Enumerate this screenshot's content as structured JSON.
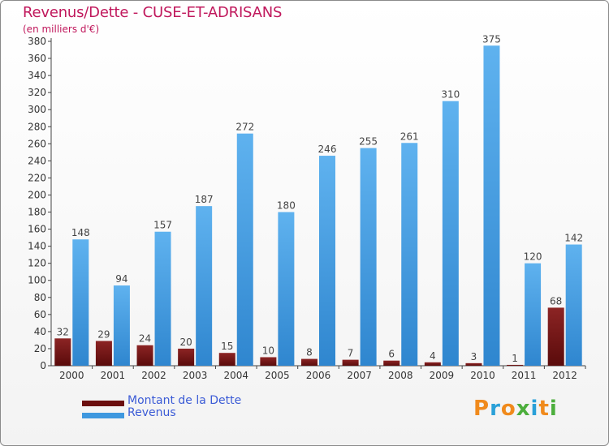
{
  "title": "Revenus/Dette - CUSE-ET-ADRISANS",
  "subtitle": "(en milliers d'€)",
  "logo": {
    "text": "Proxiti",
    "colors": [
      "#f08a1c",
      "#2aa0d8",
      "#f08a1c",
      "#4cae3c",
      "#2aa0d8",
      "#f08a1c",
      "#4cae3c"
    ]
  },
  "colors": {
    "dette": "#7a1a1a",
    "revenus": "#4aa3e6"
  },
  "legend": [
    {
      "label": "Montant de la Dette",
      "color": "#6b0e0e"
    },
    {
      "label": "Revenus",
      "color": "#3e98df"
    }
  ],
  "chart_data": {
    "type": "bar",
    "title": "Revenus/Dette - CUSE-ET-ADRISANS",
    "subtitle": "(en milliers d'€)",
    "categories": [
      "2000",
      "2001",
      "2002",
      "2003",
      "2004",
      "2005",
      "2006",
      "2007",
      "2008",
      "2009",
      "2010",
      "2011",
      "2012"
    ],
    "series": [
      {
        "name": "Montant de la Dette",
        "values": [
          32,
          29,
          24,
          20,
          15,
          10,
          8,
          7,
          6,
          4,
          3,
          1,
          68
        ]
      },
      {
        "name": "Revenus",
        "values": [
          148,
          94,
          157,
          187,
          272,
          180,
          246,
          255,
          261,
          310,
          375,
          120,
          142
        ]
      }
    ],
    "ylim": [
      0,
      380
    ],
    "yticks": [
      0,
      20,
      40,
      60,
      80,
      100,
      120,
      140,
      160,
      180,
      200,
      220,
      240,
      260,
      280,
      300,
      320,
      340,
      360,
      380
    ],
    "grid": false,
    "legend_position": "bottom-left"
  }
}
